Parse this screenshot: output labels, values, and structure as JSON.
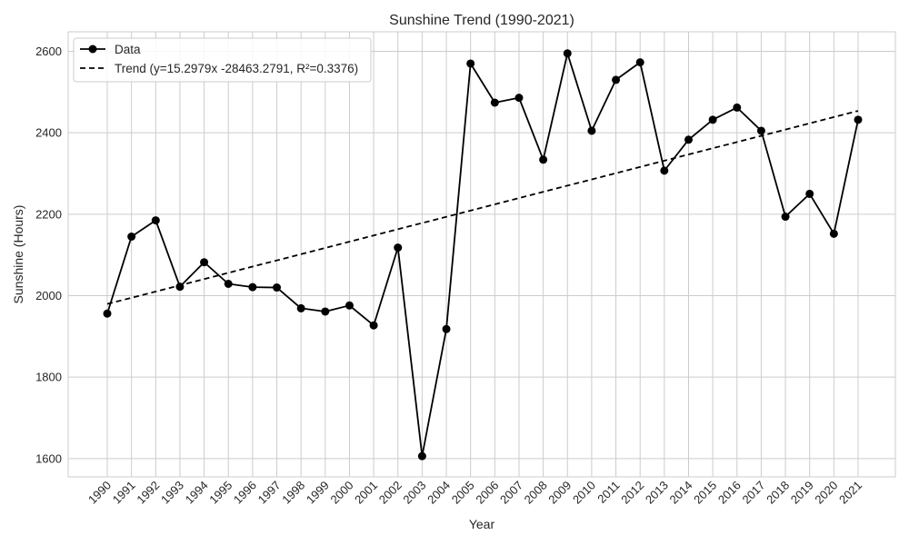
{
  "chart_data": {
    "type": "line",
    "title": "Sunshine Trend (1990-2021)",
    "xlabel": "Year",
    "ylabel": "Sunshine (Hours)",
    "ylim": [
      1555,
      2648
    ],
    "yticks": [
      1600,
      1800,
      2000,
      2200,
      2400,
      2600
    ],
    "grid": true,
    "legend_position": "top-left",
    "x": [
      1990,
      1991,
      1992,
      1993,
      1994,
      1995,
      1996,
      1997,
      1998,
      1999,
      2000,
      2001,
      2002,
      2003,
      2004,
      2005,
      2006,
      2007,
      2008,
      2009,
      2010,
      2011,
      2012,
      2013,
      2014,
      2015,
      2016,
      2017,
      2018,
      2019,
      2020,
      2021
    ],
    "series": [
      {
        "name": "Data",
        "style": "solid-with-markers",
        "color": "#000000",
        "values": [
          1956,
          2145,
          2185,
          2022,
          2082,
          2029,
          2021,
          2020,
          1969,
          1961,
          1976,
          1927,
          2118,
          1606,
          1918,
          2570,
          2474,
          2486,
          2334,
          2595,
          2405,
          2530,
          2573,
          2307,
          2383,
          2432,
          2462,
          2405,
          2194,
          2250,
          2152,
          2432
        ]
      },
      {
        "name": "Trend (y=15.2979x -28463.2791, R²=0.3376)",
        "style": "dashed",
        "color": "#000000",
        "slope": 15.2979,
        "intercept": -28463.2791
      }
    ]
  },
  "colors": {
    "background": "#ffffff",
    "grid": "#cccccc",
    "axes_frame": "#cccccc",
    "line": "#000000",
    "text": "#262626"
  }
}
